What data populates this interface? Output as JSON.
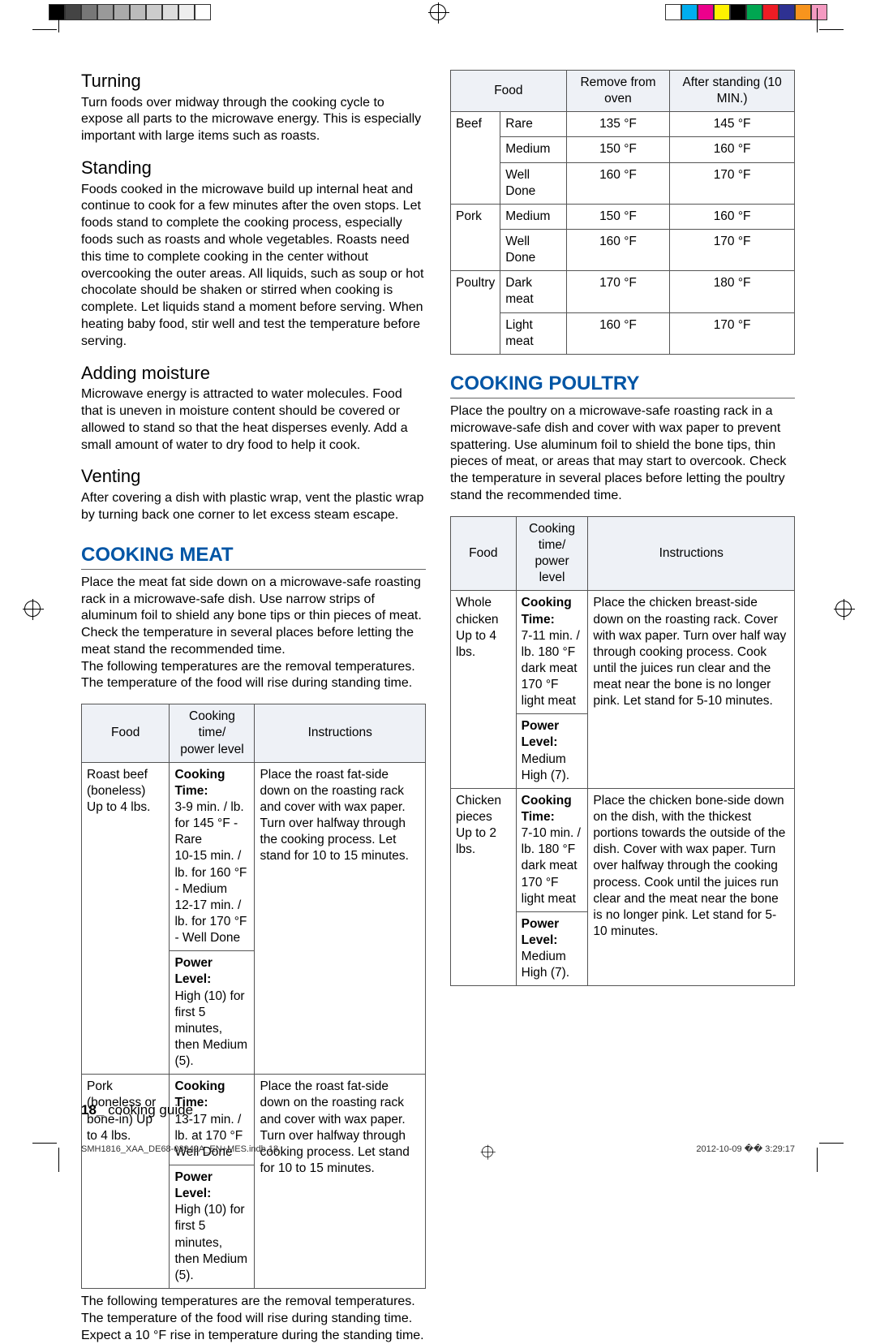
{
  "regColorsLeft": [
    "#000000",
    "#444444",
    "#777777",
    "#999999",
    "#aaaaaa",
    "#bbbbbb",
    "#cccccc",
    "#dddddd",
    "#eeeeee",
    "#ffffff"
  ],
  "regColorsRight": [
    "#ffffff",
    "#00aeef",
    "#ec008c",
    "#fff200",
    "#000000",
    "#00a651",
    "#ed1c24",
    "#2e3192",
    "#f7941d",
    "#f49ac1"
  ],
  "leftCol": {
    "h_turning": "Turning",
    "p_turning": "Turn foods over midway through the cooking cycle to expose all parts to the microwave energy. This is especially important with large items such as roasts.",
    "h_standing": "Standing",
    "p_standing": "Foods cooked in the microwave build up internal heat and continue to cook for a few minutes after the oven stops. Let foods stand to complete the cooking process, especially foods such as roasts and whole vegetables. Roasts need this time to complete cooking in the center without overcooking the outer areas. All liquids, such as soup or hot chocolate should be shaken or stirred when cooking is complete. Let liquids stand a moment before serving. When heating baby food, stir well and test the temperature before serving.",
    "h_moisture": "Adding moisture",
    "p_moisture": "Microwave energy is attracted to water molecules. Food that is uneven in moisture content should be covered or allowed to stand so that the heat disperses evenly. Add a small amount of water to dry food to help it cook.",
    "h_venting": "Venting",
    "p_venting": "After covering a dish with plastic wrap, vent the plastic wrap by turning back one corner to let excess steam escape.",
    "h_meat": "COOKING MEAT",
    "p_meat": "Place the meat fat side down on a microwave-safe roasting rack in a microwave-safe dish. Use narrow strips of aluminum foil to shield any bone tips or thin pieces of meat. Check the temperature in several places before letting the meat stand the recommended time.\nThe following temperatures are the removal temperatures. The temperature of the food will rise during standing time.",
    "meatTable": {
      "headers": [
        "Food",
        "Cooking time/\npower level",
        "Instructions"
      ],
      "rows": [
        {
          "food": "Roast beef (boneless) Up to 4 lbs.",
          "ct_label": "Cooking Time:",
          "ct_body": "3-9 min. / lb. for 145 °F - Rare\n10-15 min. / lb. for 160 °F - Medium\n12-17 min. / lb. for 170 °F - Well Done",
          "pl_label": "Power Level:",
          "pl_body": "High (10) for first 5 minutes, then Medium (5).",
          "instr": "Place the roast fat-side down on the roasting rack and cover with wax paper. Turn over halfway through the cooking process. Let stand for 10 to 15 minutes."
        },
        {
          "food": "Pork (boneless or bone-in) Up to 4 lbs.",
          "ct_label": "Cooking Time:",
          "ct_body": "13-17 min. / lb. at 170 °F Well Done",
          "pl_label": "Power Level:",
          "pl_body": "High (10) for first 5 minutes, then Medium (5).",
          "instr": "Place the roast fat-side down on the roasting rack and cover with wax paper. Turn over halfway through cooking process. Let stand for 10 to 15 minutes."
        }
      ]
    },
    "p_after_meat": "The following temperatures are the removal temperatures. The temperature of the food will rise during standing time. Expect a 10 °F rise in temperature during the standing time."
  },
  "rightCol": {
    "tempTable": {
      "headers": [
        "Food",
        "Remove from oven",
        "After standing (10 MIN.)"
      ],
      "rows": [
        {
          "g": "Beef",
          "d": "Rare",
          "r": "135 °F",
          "a": "145 °F"
        },
        {
          "g": "",
          "d": "Medium",
          "r": "150 °F",
          "a": "160 °F"
        },
        {
          "g": "",
          "d": "Well Done",
          "r": "160 °F",
          "a": "170 °F"
        },
        {
          "g": "Pork",
          "d": "Medium",
          "r": "150 °F",
          "a": "160 °F"
        },
        {
          "g": "",
          "d": "Well Done",
          "r": "160 °F",
          "a": "170 °F"
        },
        {
          "g": "Poultry",
          "d": "Dark meat",
          "r": "170 °F",
          "a": "180 °F"
        },
        {
          "g": "",
          "d": "Light meat",
          "r": "160 °F",
          "a": "170 °F"
        }
      ]
    },
    "h_poultry": "COOKING POULTRY",
    "p_poultry": "Place the poultry on a microwave-safe roasting rack in a microwave-safe dish and cover with wax paper to prevent spattering. Use aluminum foil to shield the bone tips, thin pieces of meat, or areas that may start to overcook. Check the temperature in several places before letting the poultry stand the recommended time.",
    "poultryTable": {
      "headers": [
        "Food",
        "Cooking time/\npower level",
        "Instructions"
      ],
      "rows": [
        {
          "food": "Whole chicken Up to 4 lbs.",
          "ct_label": "Cooking Time:",
          "ct_body": "7-11 min. / lb. 180 °F dark meat\n170 °F light meat",
          "pl_label": "Power Level:",
          "pl_body": "Medium High (7).",
          "instr": "Place the chicken breast-side down on the roasting rack. Cover with wax paper. Turn over half way through cooking process. Cook until the juices run clear and the meat near the bone is no longer pink. Let stand for 5-10 minutes."
        },
        {
          "food": "Chicken pieces Up to 2 lbs.",
          "ct_label": "Cooking Time:",
          "ct_body": "7-10 min. / lb. 180 °F dark meat\n170 °F light meat",
          "pl_label": "Power Level:",
          "pl_body": "Medium High (7).",
          "instr": "Place the chicken bone-side down on the dish, with the thickest portions towards the outside of the dish. Cover with wax paper. Turn over halfway through the cooking process. Cook until the juices run clear and the meat near the bone is no longer pink. Let stand for 5-10 minutes."
        }
      ]
    }
  },
  "footer": {
    "page": "18_",
    "section": "cooking guide"
  },
  "printLeft": "SMH1816_XAA_DE68-03942A_EN+MES.indb   18",
  "printRight": "2012-10-09   �� 3:29:17"
}
